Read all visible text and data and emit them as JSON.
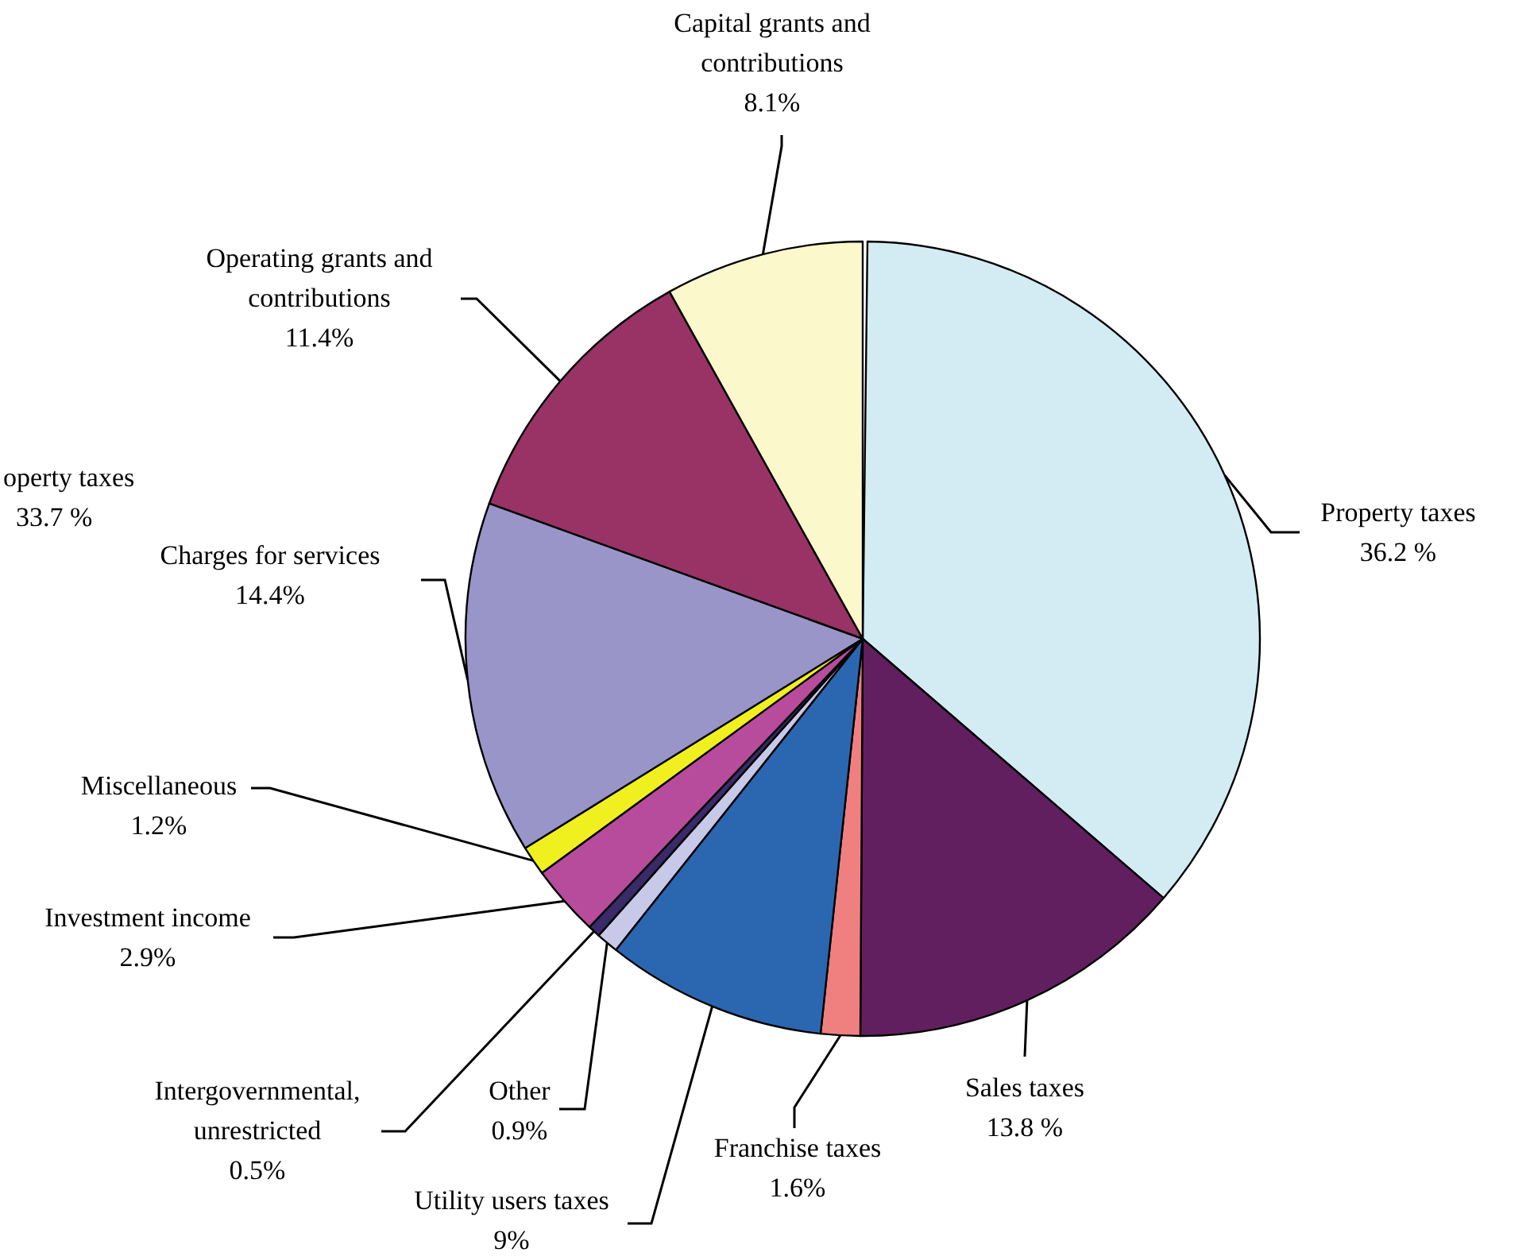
{
  "chart_data": {
    "type": "pie",
    "categories": [
      "Property taxes",
      "Sales taxes",
      "Franchise taxes",
      "Utility users taxes",
      "Other",
      "Intergovernmental,\nunrestricted",
      "Investment income",
      "Miscellaneous",
      "Charges for services",
      "Operating grants and\ncontributions",
      "Capital grants and\ncontributions"
    ],
    "values": [
      36.2,
      13.8,
      1.6,
      9,
      0.9,
      0.5,
      2.9,
      1.2,
      14.4,
      11.4,
      8.1
    ],
    "value_labels": [
      "36.2 %",
      "13.8 %",
      "1.6%",
      "9%",
      "0.9%",
      "0.5%",
      "2.9%",
      "1.2%",
      "14.4%",
      "11.4%",
      "8.1%"
    ],
    "colors": [
      "#d3ecf3",
      "#621f5f",
      "#f08080",
      "#2b67b1",
      "#c8c8e8",
      "#3a2a6a",
      "#b84c9c",
      "#f0f020",
      "#9995c9",
      "#993366",
      "#fbf8cc"
    ],
    "annotations": [
      "operty taxes",
      "33.7 %"
    ]
  }
}
